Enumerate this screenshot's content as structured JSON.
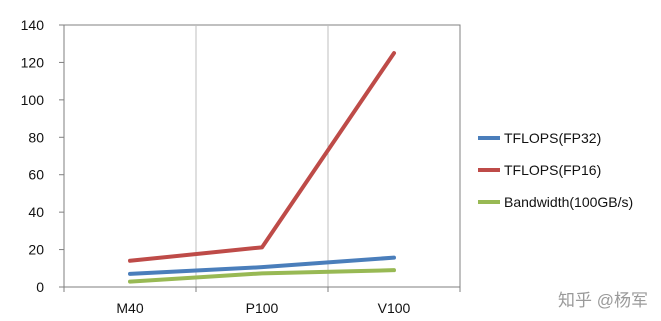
{
  "chart_data": {
    "type": "line",
    "categories": [
      "M40",
      "P100",
      "V100"
    ],
    "series": [
      {
        "name": "TFLOPS(FP32)",
        "values": [
          7,
          10.6,
          15.7
        ],
        "color": "#4a7ebb"
      },
      {
        "name": "TFLOPS(FP16)",
        "values": [
          14,
          21.2,
          125
        ],
        "color": "#be4b48"
      },
      {
        "name": "Bandwidth(100GB/s)",
        "values": [
          2.9,
          7.3,
          9.0
        ],
        "color": "#98b954"
      }
    ],
    "ylim": [
      0,
      140
    ],
    "yticks": [
      0,
      20,
      40,
      60,
      80,
      100,
      120,
      140
    ],
    "grid": "vertical",
    "legend": "right",
    "title": "",
    "xlabel": "",
    "ylabel": ""
  },
  "watermark": "知乎 @杨军",
  "colors": {
    "axis": "#7f7f7f",
    "grid": "#bfbfbf",
    "plot_border": "#808080"
  }
}
